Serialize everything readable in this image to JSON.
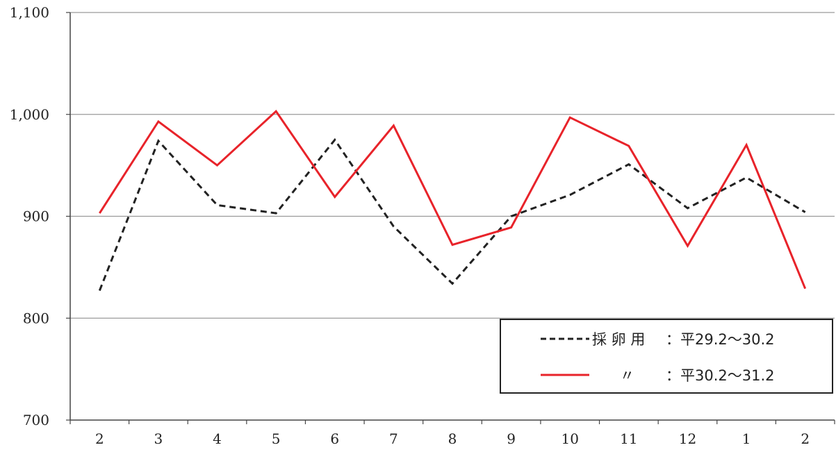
{
  "chart_data": {
    "type": "line",
    "categories": [
      "2",
      "3",
      "4",
      "5",
      "6",
      "7",
      "8",
      "9",
      "10",
      "11",
      "12",
      "1",
      "2"
    ],
    "y_ticks": [
      "700",
      "800",
      "900",
      "1,000",
      "1,100"
    ],
    "ylim": [
      700,
      1100
    ],
    "grid": true,
    "legend_position": "bottom-right",
    "series": [
      {
        "name_parts": [
          "採 卵 用",
          "：平29.2〜30.2"
        ],
        "color": "#222222",
        "dash": "dashed",
        "values": [
          827,
          974,
          911,
          903,
          975,
          890,
          834,
          900,
          921,
          951,
          908,
          938,
          904
        ]
      },
      {
        "name_parts": [
          "〃",
          "：平30.2〜31.2"
        ],
        "color": "#e8232a",
        "dash": "solid",
        "values": [
          903,
          993,
          950,
          1003,
          919,
          989,
          872,
          889,
          997,
          969,
          871,
          970,
          829
        ]
      }
    ]
  }
}
